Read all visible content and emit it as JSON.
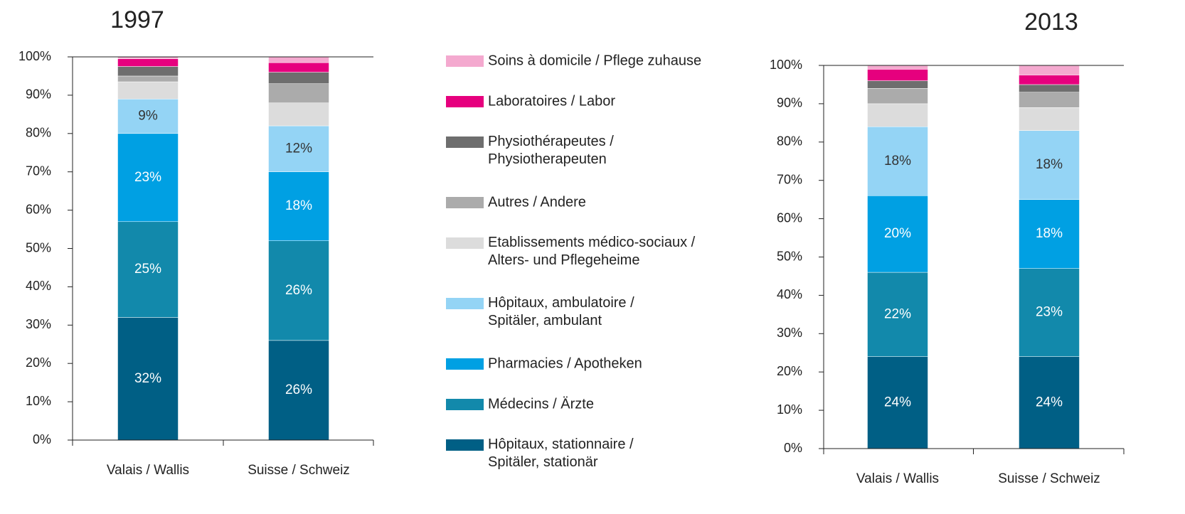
{
  "chart_data": {
    "type": "bar",
    "stacked": true,
    "categories": [
      "Valais / Wallis",
      "Suisse / Schweiz"
    ],
    "legend": [
      {
        "name": "Hôpitaux, stationnaire / Spitäler, stationär",
        "color": "#005f85"
      },
      {
        "name": "Médecins / Ärzte",
        "color": "#1289ab"
      },
      {
        "name": "Pharmacies / Apotheken",
        "color": "#00a0e3"
      },
      {
        "name": "Hôpitaux, ambulatoire / Spitäler, ambulant",
        "color": "#94d4f5"
      },
      {
        "name": "Etablissements médico-sociaux / Alters- und Pflegeheime",
        "color": "#dcdcdc"
      },
      {
        "name": "Autres / Andere",
        "color": "#ababab"
      },
      {
        "name": "Physiothérapeutes / Physiotherapeuten",
        "color": "#6e6e6e"
      },
      {
        "name": "Laboratoires / Labor",
        "color": "#e6007e"
      },
      {
        "name": "Soins à domicile / Pflege zuhause",
        "color": "#f4a9cf"
      }
    ],
    "panels": [
      {
        "title": "1997",
        "ylim": [
          0,
          100
        ],
        "yticks": [
          {
            "value": 0,
            "label": "0%"
          },
          {
            "value": 10,
            "label": "10%"
          },
          {
            "value": 20,
            "label": "20%"
          },
          {
            "value": 30,
            "label": "30%"
          },
          {
            "value": 40,
            "label": "40%"
          },
          {
            "value": 50,
            "label": "50%"
          },
          {
            "value": 60,
            "label": "60%"
          },
          {
            "value": 70,
            "label": "70%"
          },
          {
            "value": 80,
            "label": "80%"
          },
          {
            "value": 90,
            "label": "90%"
          },
          {
            "value": 100,
            "label": "100%"
          }
        ],
        "series": [
          {
            "values": [
              32,
              26
            ],
            "value_labels": [
              "32%",
              "26%"
            ]
          },
          {
            "values": [
              25,
              26
            ],
            "value_labels": [
              "25%",
              "26%"
            ]
          },
          {
            "values": [
              23,
              18
            ],
            "value_labels": [
              "23%",
              "18%"
            ]
          },
          {
            "values": [
              9,
              12
            ],
            "value_labels": [
              "9%",
              "12%"
            ]
          },
          {
            "values": [
              4.5,
              6
            ]
          },
          {
            "values": [
              1.5,
              5
            ]
          },
          {
            "values": [
              2.5,
              3
            ]
          },
          {
            "values": [
              2,
              2.5
            ]
          },
          {
            "values": [
              0.5,
              1.5
            ]
          }
        ]
      },
      {
        "title": "2013",
        "ylim": [
          0,
          100
        ],
        "yticks": [
          {
            "value": 0,
            "label": "0%"
          },
          {
            "value": 10,
            "label": "10%"
          },
          {
            "value": 20,
            "label": "20%"
          },
          {
            "value": 30,
            "label": "30%"
          },
          {
            "value": 40,
            "label": "40%"
          },
          {
            "value": 50,
            "label": "50%"
          },
          {
            "value": 60,
            "label": "60%"
          },
          {
            "value": 70,
            "label": "70%"
          },
          {
            "value": 80,
            "label": "80%"
          },
          {
            "value": 90,
            "label": "90%"
          },
          {
            "value": 100,
            "label": "100%"
          }
        ],
        "series": [
          {
            "values": [
              24,
              24
            ],
            "value_labels": [
              "24%",
              "24%"
            ]
          },
          {
            "values": [
              22,
              23
            ],
            "value_labels": [
              "22%",
              "23%"
            ]
          },
          {
            "values": [
              20,
              18
            ],
            "value_labels": [
              "20%",
              "18%"
            ]
          },
          {
            "values": [
              18,
              18
            ],
            "value_labels": [
              "18%",
              "18%"
            ]
          },
          {
            "values": [
              6,
              6
            ]
          },
          {
            "values": [
              4,
              4
            ]
          },
          {
            "values": [
              2,
              2
            ]
          },
          {
            "values": [
              3,
              2.5
            ]
          },
          {
            "values": [
              1,
              2.5
            ]
          }
        ]
      }
    ]
  }
}
